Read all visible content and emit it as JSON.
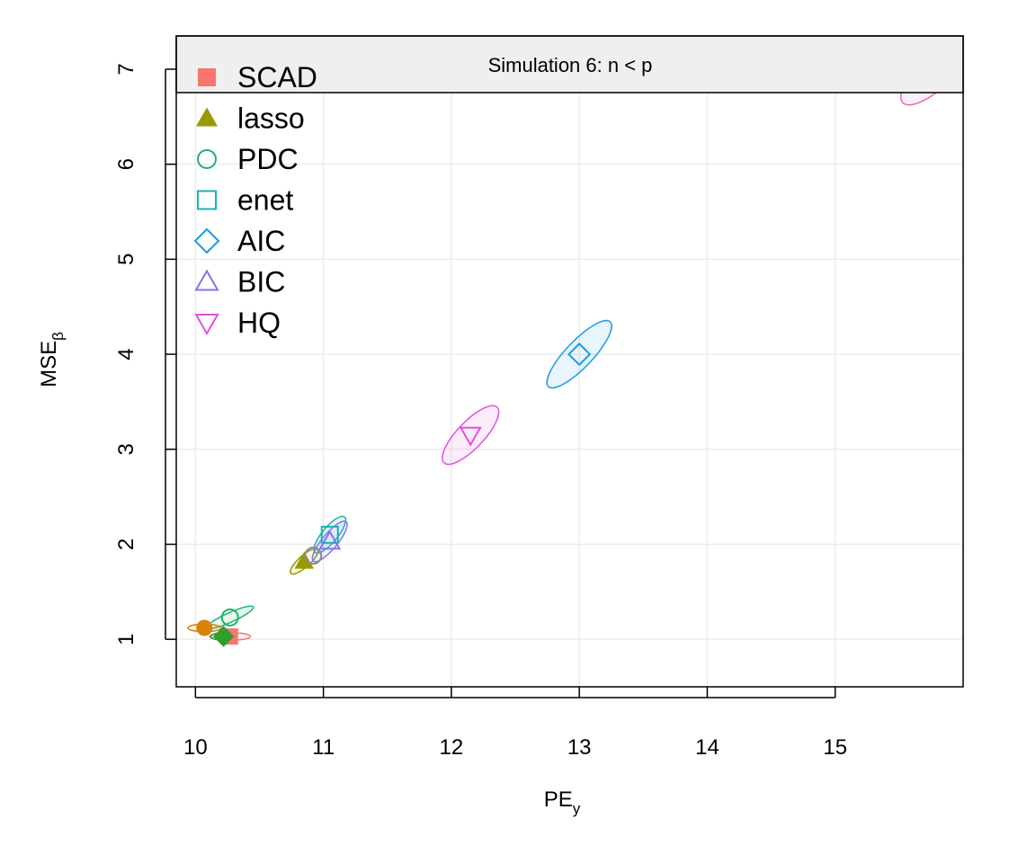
{
  "chart_data": {
    "type": "scatter",
    "title": "Simulation 6: n < p",
    "xlabel": {
      "main": "PE",
      "sub": "y"
    },
    "ylabel": {
      "main": "MSE",
      "sub": "β"
    },
    "xlim": [
      9.85,
      16.0
    ],
    "ylim": [
      0.5,
      7.35
    ],
    "x_ticks": [
      10,
      11,
      12,
      13,
      14,
      15
    ],
    "y_ticks": [
      1,
      2,
      3,
      4,
      5,
      6,
      7
    ],
    "grid": true,
    "legend_position": "top-left",
    "series": [
      {
        "name": "SCAD",
        "color": "#F8766D",
        "marker": "filled-square",
        "x": 10.27,
        "y": 1.03,
        "ellipse": {
          "rx": 0.16,
          "ry": 0.04,
          "angle": 0
        }
      },
      {
        "name": "lasso",
        "color": "#999900",
        "marker": "filled-triangle",
        "x": 10.85,
        "y": 1.82,
        "ellipse": {
          "rx": 0.14,
          "ry": 0.06,
          "angle": 0.3
        }
      },
      {
        "name": "PDC",
        "color": "#1DB36B",
        "marker": "circle",
        "x": 10.27,
        "y": 1.23,
        "ellipse": {
          "rx": 0.2,
          "ry": 0.05,
          "angle": 0.15
        }
      },
      {
        "name": "enet",
        "color": "#1DB1B1",
        "marker": "square",
        "x": 11.05,
        "y": 2.1,
        "ellipse": {
          "rx": 0.18,
          "ry": 0.08,
          "angle": 0.4
        }
      },
      {
        "name": "AIC",
        "color": "#1C9BE0",
        "marker": "diamond",
        "x": 13.0,
        "y": 4.0,
        "ellipse": {
          "rx": 0.35,
          "ry": 0.14,
          "angle": 0.35
        }
      },
      {
        "name": "BIC",
        "color": "#8472F2",
        "marker": "triangle",
        "x": 11.05,
        "y": 2.03,
        "ellipse": {
          "rx": 0.2,
          "ry": 0.08,
          "angle": 0.4
        }
      },
      {
        "name": "HQ",
        "color": "#E34FE3",
        "marker": "down-triangle",
        "x": 12.15,
        "y": 3.15,
        "ellipse": {
          "rx": 0.3,
          "ry": 0.14,
          "angle": 0.35
        }
      }
    ],
    "extra_points": [
      {
        "color": "#D9820B",
        "marker": "filled-circle",
        "x": 10.07,
        "y": 1.12,
        "ellipse": {
          "rx": 0.13,
          "ry": 0.04,
          "angle": 0
        }
      },
      {
        "color": "#2E9E2E",
        "marker": "filled-diamond",
        "x": 10.22,
        "y": 1.03,
        "ellipse": {
          "rx": 0.1,
          "ry": 0.04,
          "angle": 0
        }
      },
      {
        "color": "#8A8A8A",
        "marker": "circle",
        "x": 10.92,
        "y": 1.88,
        "ellipse": null
      },
      {
        "color": "#F062C0",
        "marker": "boxed-x",
        "x": 15.75,
        "y": 6.92,
        "ellipse": {
          "rx": 0.3,
          "ry": 0.16,
          "angle": 0.3
        }
      }
    ]
  }
}
